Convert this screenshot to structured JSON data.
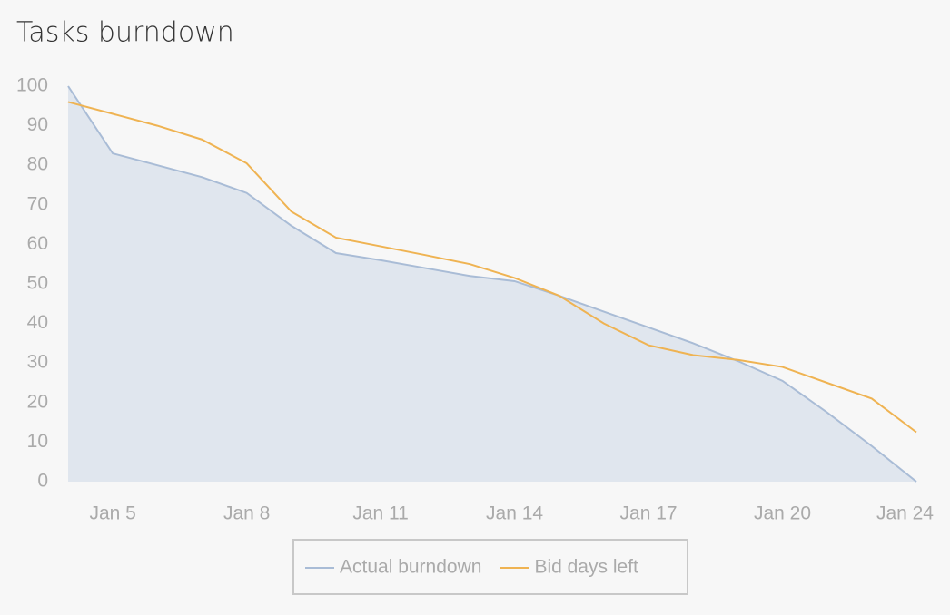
{
  "chart_data": {
    "type": "line",
    "title": "Tasks burndown",
    "categories": [
      null,
      "Jan 5",
      null,
      null,
      "Jan 8",
      null,
      null,
      "Jan 11",
      null,
      null,
      "Jan 14",
      null,
      null,
      "Jan 17",
      null,
      null,
      "Jan 20",
      null,
      null,
      "Jan 24"
    ],
    "series": [
      {
        "name": "Actual burndown",
        "color": "#a9bcd6",
        "fill": "#e0e6ee",
        "values": [
          100,
          83,
          80,
          77,
          73,
          64.7,
          57.8,
          56,
          54,
          52,
          50.7,
          47,
          43,
          39,
          35,
          30.5,
          25.5,
          17.5,
          9,
          0
        ]
      },
      {
        "name": "Bid days left",
        "color": "#efb352",
        "values": [
          96,
          93,
          90,
          86.5,
          80.5,
          68.3,
          61.7,
          59.5,
          57.3,
          55,
          51.5,
          47,
          40,
          34.5,
          32,
          30.8,
          29,
          25,
          21,
          12.5
        ]
      }
    ],
    "ylim": [
      0,
      100
    ],
    "yticks": [
      0,
      10,
      20,
      30,
      40,
      50,
      60,
      70,
      80,
      90,
      100
    ],
    "grid": false,
    "legend": "bottom"
  }
}
